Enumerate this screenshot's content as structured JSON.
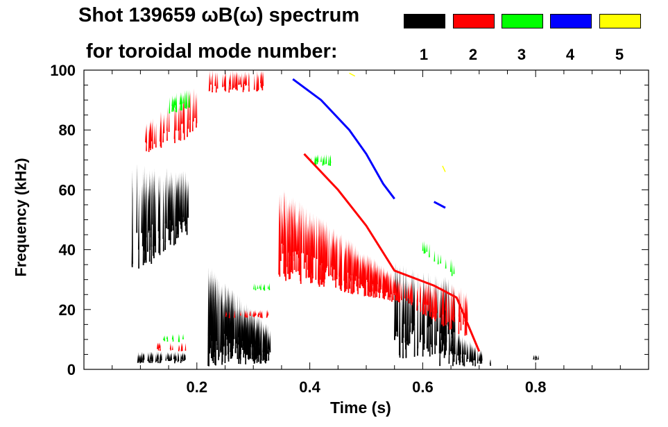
{
  "chart_data": {
    "type": "heatmap",
    "title_line1": "Shot 139659 ωB(ω) spectrum",
    "title_line2": "for toroidal mode number:",
    "xlabel": "Time (s)",
    "ylabel": "Frequency (kHz)",
    "xlim": [
      0,
      1.0
    ],
    "ylim": [
      0,
      100
    ],
    "xticks": [
      "0.2",
      "0.4",
      "0.6",
      "0.8"
    ],
    "xtick_values": [
      0.2,
      0.4,
      0.6,
      0.8
    ],
    "yticks": [
      "0",
      "20",
      "40",
      "60",
      "80",
      "100"
    ],
    "ytick_values": [
      0,
      20,
      40,
      60,
      80,
      100
    ],
    "legend": [
      {
        "label": "1",
        "color": "#000000"
      },
      {
        "label": "2",
        "color": "#ff0000"
      },
      {
        "label": "3",
        "color": "#00ff00"
      },
      {
        "label": "4",
        "color": "#0000ff"
      },
      {
        "label": "5",
        "color": "#ffff00"
      }
    ],
    "legend_placement": "top-right",
    "streak_regions": [
      {
        "mode": 1,
        "t": [
          0.085,
          0.185
        ],
        "f_low": [
          30,
          45
        ],
        "f_high": [
          70,
          66
        ],
        "density": 90
      },
      {
        "mode": 1,
        "t": [
          0.095,
          0.18
        ],
        "f_low": [
          2,
          2
        ],
        "f_high": [
          6,
          6
        ],
        "density": 60
      },
      {
        "mode": 1,
        "t": [
          0.22,
          0.33
        ],
        "f_low": [
          1,
          2
        ],
        "f_high": [
          35,
          14
        ],
        "density": 200
      },
      {
        "mode": 1,
        "t": [
          0.55,
          0.66
        ],
        "f_low": [
          3,
          5
        ],
        "f_high": [
          36,
          30
        ],
        "density": 90
      },
      {
        "mode": 1,
        "t": [
          0.63,
          0.72
        ],
        "f_low": [
          1,
          1
        ],
        "f_high": [
          18,
          4
        ],
        "density": 60
      },
      {
        "mode": 1,
        "t": [
          0.795,
          0.805
        ],
        "f_low": [
          3,
          3
        ],
        "f_high": [
          5,
          5
        ],
        "density": 6
      },
      {
        "mode": 2,
        "t": [
          0.105,
          0.2
        ],
        "f_low": [
          72,
          78
        ],
        "f_high": [
          82,
          95
        ],
        "density": 50
      },
      {
        "mode": 2,
        "t": [
          0.22,
          0.32
        ],
        "f_low": [
          92,
          93
        ],
        "f_high": [
          100,
          100
        ],
        "density": 50
      },
      {
        "mode": 2,
        "t": [
          0.345,
          0.56
        ],
        "f_low": [
          30,
          22
        ],
        "f_high": [
          62,
          30
        ],
        "density": 300
      },
      {
        "mode": 2,
        "t": [
          0.56,
          0.68
        ],
        "f_low": [
          22,
          10
        ],
        "f_high": [
          30,
          28
        ],
        "density": 80
      },
      {
        "mode": 2,
        "t": [
          0.25,
          0.33
        ],
        "f_low": [
          17,
          17
        ],
        "f_high": [
          20,
          20
        ],
        "density": 25
      },
      {
        "mode": 2,
        "t": [
          0.13,
          0.18
        ],
        "f_low": [
          6,
          6
        ],
        "f_high": [
          9,
          9
        ],
        "density": 15
      },
      {
        "mode": 3,
        "t": [
          0.15,
          0.19
        ],
        "f_low": [
          85,
          87
        ],
        "f_high": [
          92,
          94
        ],
        "density": 25
      },
      {
        "mode": 3,
        "t": [
          0.4,
          0.46
        ],
        "f_low": [
          68,
          68
        ],
        "f_high": [
          72,
          72
        ],
        "density": 20
      },
      {
        "mode": 3,
        "t": [
          0.3,
          0.33
        ],
        "f_low": [
          26,
          26
        ],
        "f_high": [
          29,
          29
        ],
        "density": 10
      },
      {
        "mode": 3,
        "t": [
          0.14,
          0.18
        ],
        "f_low": [
          9,
          9
        ],
        "f_high": [
          12,
          12
        ],
        "density": 10
      },
      {
        "mode": 3,
        "t": [
          0.6,
          0.66
        ],
        "f_low": [
          38,
          30
        ],
        "f_high": [
          44,
          36
        ],
        "density": 12
      }
    ],
    "mode_lines": [
      {
        "mode": 4,
        "points": [
          [
            0.37,
            97
          ],
          [
            0.42,
            90
          ],
          [
            0.47,
            80
          ],
          [
            0.5,
            72
          ],
          [
            0.53,
            62
          ],
          [
            0.55,
            57
          ]
        ],
        "width": 2
      },
      {
        "mode": 4,
        "points": [
          [
            0.62,
            56
          ],
          [
            0.64,
            54
          ]
        ],
        "width": 2
      },
      {
        "mode": 2,
        "points": [
          [
            0.39,
            72
          ],
          [
            0.45,
            60
          ],
          [
            0.5,
            48
          ],
          [
            0.55,
            33
          ],
          [
            0.62,
            28
          ],
          [
            0.66,
            24
          ],
          [
            0.7,
            6
          ]
        ],
        "width": 2
      },
      {
        "mode": 5,
        "points": [
          [
            0.47,
            99
          ],
          [
            0.48,
            98
          ]
        ],
        "width": 1
      },
      {
        "mode": 5,
        "points": [
          [
            0.635,
            68
          ],
          [
            0.64,
            66
          ]
        ],
        "width": 1
      }
    ]
  }
}
